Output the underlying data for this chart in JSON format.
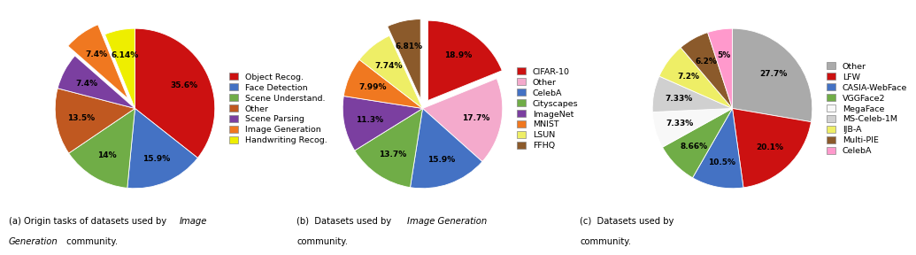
{
  "chart_a": {
    "labels": [
      "Object Recog.",
      "Face Detection",
      "Scene Understand.",
      "Other",
      "Scene Parsing",
      "Image Generation",
      "Handwriting Recog."
    ],
    "values": [
      35.6,
      15.9,
      14.0,
      13.5,
      7.4,
      7.4,
      6.14
    ],
    "colors": [
      "#cc1111",
      "#4472c4",
      "#70ad47",
      "#c05820",
      "#7b3fa0",
      "#f07820",
      "#eeee00"
    ],
    "explode": [
      0,
      0,
      0,
      0,
      0,
      0.15,
      0
    ],
    "pct_labels": [
      "35.6%",
      "15.9%",
      "14%",
      "13.5%",
      "7.4%",
      "7.4%",
      "6.14%"
    ],
    "startangle": 90,
    "counterclock": false
  },
  "chart_b": {
    "labels": [
      "CIFAR-10",
      "Other",
      "CelebA",
      "Cityscapes",
      "ImageNet",
      "MNIST",
      "LSUN",
      "FFHQ"
    ],
    "values": [
      18.9,
      17.7,
      15.9,
      13.7,
      11.3,
      7.99,
      7.74,
      6.81
    ],
    "colors": [
      "#cc1111",
      "#f4aacc",
      "#4472c4",
      "#70ad47",
      "#7b3fa0",
      "#f07820",
      "#eeee66",
      "#8b5a2b"
    ],
    "explode": [
      0.12,
      0,
      0,
      0,
      0,
      0,
      0,
      0.12
    ],
    "pct_labels": [
      "18.9%",
      "17.7%",
      "15.9%",
      "13.7%",
      "11.3%",
      "7.99%",
      "7.74%",
      "6.81%"
    ],
    "startangle": 90,
    "counterclock": false
  },
  "chart_c": {
    "labels": [
      "Other",
      "LFW",
      "CASIA-WebFace",
      "VGGFace2",
      "MegaFace",
      "MS-Celeb-1M",
      "IJB-A",
      "Multi-PIE",
      "CelebA"
    ],
    "values": [
      27.7,
      20.1,
      10.5,
      8.66,
      7.33,
      7.33,
      7.2,
      6.2,
      5.0
    ],
    "colors": [
      "#aaaaaa",
      "#cc1111",
      "#4472c4",
      "#70ad47",
      "#f8f8f8",
      "#d0d0d0",
      "#eeee66",
      "#8b5a2b",
      "#ff99cc"
    ],
    "explode": [
      0,
      0,
      0,
      0,
      0,
      0,
      0,
      0,
      0
    ],
    "pct_labels": [
      "27.7%",
      "20.1%",
      "10.5%",
      "8.66%",
      "7.33%",
      "7.33%",
      "7.2%",
      "6.2%",
      "5%"
    ],
    "startangle": 90,
    "counterclock": false
  },
  "bg": "#ffffff",
  "label_r": 0.68,
  "legend_fontsize": 6.8,
  "pct_fontsize": 6.5
}
